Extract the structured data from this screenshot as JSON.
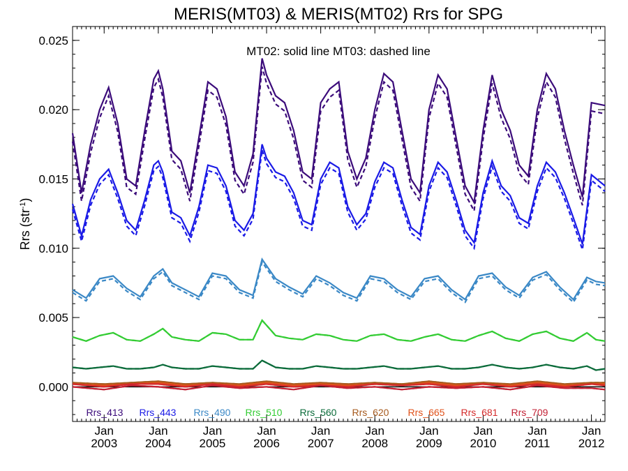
{
  "chart_data": {
    "type": "line",
    "title": "MERIS(MT03) & MERIS(MT02)  Rrs for SPG",
    "annotation": "MT02: solid line   MT03: dashed line",
    "ylabel_main": "Rrs (str",
    "ylabel_sup": "-1",
    "ylabel_close": ")",
    "xlim": [
      "2002-06",
      "2012-04"
    ],
    "ylim": [
      -0.0025,
      0.026
    ],
    "yticks": [
      {
        "value": 0.0,
        "label": "0.000"
      },
      {
        "value": 0.005,
        "label": "0.005"
      },
      {
        "value": 0.01,
        "label": "0.010"
      },
      {
        "value": 0.015,
        "label": "0.015"
      },
      {
        "value": 0.02,
        "label": "0.020"
      },
      {
        "value": 0.025,
        "label": "0.025"
      }
    ],
    "xticks": [
      {
        "value": "2003-01",
        "label1": "Jan",
        "label2": "2003"
      },
      {
        "value": "2004-01",
        "label1": "Jan",
        "label2": "2004"
      },
      {
        "value": "2005-01",
        "label1": "Jan",
        "label2": "2005"
      },
      {
        "value": "2006-01",
        "label1": "Jan",
        "label2": "2006"
      },
      {
        "value": "2007-01",
        "label1": "Jan",
        "label2": "2007"
      },
      {
        "value": "2008-01",
        "label1": "Jan",
        "label2": "2008"
      },
      {
        "value": "2009-01",
        "label1": "Jan",
        "label2": "2009"
      },
      {
        "value": "2010-01",
        "label1": "Jan",
        "label2": "2010"
      },
      {
        "value": "2011-01",
        "label1": "Jan",
        "label2": "2011"
      },
      {
        "value": "2012-01",
        "label1": "Jan",
        "label2": "2012"
      }
    ],
    "legend_placement": "bottom inside plot",
    "series": [
      {
        "name": "Rrs_413",
        "color": "#3b0b7a",
        "mt03_offset": -0.0006,
        "x": [
          "2002-06",
          "2002-08",
          "2002-10",
          "2002-12",
          "2003-02",
          "2003-04",
          "2003-06",
          "2003-08",
          "2003-10",
          "2003-12",
          "2004-01",
          "2004-02",
          "2004-04",
          "2004-06",
          "2004-08",
          "2004-10",
          "2004-12",
          "2005-02",
          "2005-04",
          "2005-06",
          "2005-08",
          "2005-10",
          "2005-12",
          "2006-01",
          "2006-03",
          "2006-05",
          "2006-07",
          "2006-09",
          "2006-11",
          "2007-01",
          "2007-03",
          "2007-05",
          "2007-07",
          "2007-09",
          "2007-11",
          "2008-01",
          "2008-03",
          "2008-05",
          "2008-07",
          "2008-09",
          "2008-11",
          "2009-01",
          "2009-03",
          "2009-05",
          "2009-07",
          "2009-09",
          "2009-11",
          "2010-01",
          "2010-03",
          "2010-05",
          "2010-07",
          "2010-09",
          "2010-11",
          "2011-01",
          "2011-03",
          "2011-05",
          "2011-07",
          "2011-09",
          "2011-11",
          "2012-01",
          "2012-04"
        ],
        "values": [
          0.0183,
          0.014,
          0.0175,
          0.02,
          0.0216,
          0.019,
          0.015,
          0.0145,
          0.0185,
          0.0222,
          0.0228,
          0.0215,
          0.017,
          0.0163,
          0.014,
          0.018,
          0.022,
          0.0215,
          0.0195,
          0.0155,
          0.0145,
          0.0168,
          0.0237,
          0.0225,
          0.021,
          0.0205,
          0.0185,
          0.0155,
          0.015,
          0.0205,
          0.0215,
          0.022,
          0.017,
          0.015,
          0.0165,
          0.02,
          0.0226,
          0.022,
          0.0185,
          0.015,
          0.014,
          0.02,
          0.0225,
          0.0215,
          0.018,
          0.0145,
          0.0133,
          0.0185,
          0.0225,
          0.02,
          0.0185,
          0.016,
          0.0152,
          0.02,
          0.0226,
          0.0215,
          0.0185,
          0.016,
          0.0137,
          0.0205,
          0.0203
        ]
      },
      {
        "name": "Rrs_443",
        "color": "#1a1ae6",
        "mt03_offset": -0.0004,
        "x": [
          "2002-06",
          "2002-08",
          "2002-10",
          "2002-12",
          "2003-02",
          "2003-04",
          "2003-06",
          "2003-08",
          "2003-10",
          "2003-12",
          "2004-01",
          "2004-02",
          "2004-04",
          "2004-06",
          "2004-08",
          "2004-10",
          "2004-12",
          "2005-02",
          "2005-04",
          "2005-06",
          "2005-08",
          "2005-10",
          "2005-12",
          "2006-01",
          "2006-03",
          "2006-05",
          "2006-07",
          "2006-09",
          "2006-11",
          "2007-01",
          "2007-03",
          "2007-05",
          "2007-07",
          "2007-09",
          "2007-11",
          "2008-01",
          "2008-03",
          "2008-05",
          "2008-07",
          "2008-09",
          "2008-11",
          "2009-01",
          "2009-03",
          "2009-05",
          "2009-07",
          "2009-09",
          "2009-11",
          "2010-01",
          "2010-03",
          "2010-05",
          "2010-07",
          "2010-09",
          "2010-11",
          "2011-01",
          "2011-03",
          "2011-05",
          "2011-07",
          "2011-09",
          "2011-11",
          "2012-01",
          "2012-04"
        ],
        "values": [
          0.0132,
          0.0109,
          0.0135,
          0.015,
          0.0157,
          0.014,
          0.012,
          0.0113,
          0.0135,
          0.016,
          0.0163,
          0.0155,
          0.0126,
          0.0122,
          0.0109,
          0.013,
          0.016,
          0.0158,
          0.0145,
          0.012,
          0.0113,
          0.0125,
          0.0175,
          0.0165,
          0.0155,
          0.0152,
          0.014,
          0.012,
          0.0117,
          0.015,
          0.0162,
          0.0158,
          0.013,
          0.0117,
          0.0125,
          0.0148,
          0.0162,
          0.0158,
          0.0135,
          0.0115,
          0.011,
          0.0145,
          0.0162,
          0.0155,
          0.0135,
          0.0113,
          0.0104,
          0.014,
          0.0163,
          0.0145,
          0.0138,
          0.0122,
          0.0118,
          0.0145,
          0.0162,
          0.0155,
          0.014,
          0.0122,
          0.0103,
          0.0153,
          0.0145
        ]
      },
      {
        "name": "Rrs_490",
        "color": "#3a88c6",
        "mt03_offset": -0.0002,
        "x": [
          "2002-06",
          "2002-09",
          "2002-12",
          "2003-03",
          "2003-06",
          "2003-09",
          "2003-12",
          "2004-02",
          "2004-04",
          "2004-07",
          "2004-10",
          "2005-01",
          "2005-04",
          "2005-07",
          "2005-10",
          "2005-12",
          "2006-03",
          "2006-06",
          "2006-09",
          "2006-12",
          "2007-03",
          "2007-06",
          "2007-09",
          "2007-12",
          "2008-03",
          "2008-06",
          "2008-09",
          "2008-12",
          "2009-03",
          "2009-06",
          "2009-09",
          "2009-12",
          "2010-03",
          "2010-06",
          "2010-09",
          "2010-12",
          "2011-03",
          "2011-06",
          "2011-09",
          "2011-12",
          "2012-02",
          "2012-04"
        ],
        "values": [
          0.007,
          0.0064,
          0.0078,
          0.008,
          0.0071,
          0.0065,
          0.008,
          0.0085,
          0.0075,
          0.007,
          0.0065,
          0.0082,
          0.008,
          0.007,
          0.0066,
          0.0092,
          0.0078,
          0.0072,
          0.0067,
          0.008,
          0.0075,
          0.0068,
          0.0064,
          0.008,
          0.0078,
          0.007,
          0.0065,
          0.0078,
          0.008,
          0.007,
          0.0063,
          0.008,
          0.0082,
          0.0072,
          0.0066,
          0.0079,
          0.0083,
          0.0072,
          0.0063,
          0.0079,
          0.0076,
          0.0075
        ]
      },
      {
        "name": "Rrs_510",
        "color": "#33cc33",
        "mt03_offset": 0,
        "x": [
          "2002-06",
          "2002-09",
          "2002-12",
          "2003-03",
          "2003-06",
          "2003-09",
          "2003-12",
          "2004-02",
          "2004-04",
          "2004-07",
          "2004-10",
          "2005-01",
          "2005-04",
          "2005-07",
          "2005-10",
          "2005-12",
          "2006-03",
          "2006-06",
          "2006-09",
          "2006-12",
          "2007-03",
          "2007-06",
          "2007-09",
          "2007-12",
          "2008-03",
          "2008-06",
          "2008-09",
          "2008-12",
          "2009-03",
          "2009-06",
          "2009-09",
          "2009-12",
          "2010-03",
          "2010-06",
          "2010-09",
          "2010-12",
          "2011-03",
          "2011-06",
          "2011-09",
          "2011-12",
          "2012-02",
          "2012-04"
        ],
        "values": [
          0.0036,
          0.0033,
          0.0037,
          0.0039,
          0.0034,
          0.0033,
          0.0038,
          0.0042,
          0.0036,
          0.0034,
          0.0033,
          0.0039,
          0.0038,
          0.0034,
          0.0034,
          0.0048,
          0.0037,
          0.0035,
          0.0034,
          0.0038,
          0.0037,
          0.0034,
          0.0033,
          0.0037,
          0.0038,
          0.0034,
          0.0033,
          0.0036,
          0.0038,
          0.0034,
          0.0033,
          0.0037,
          0.004,
          0.0035,
          0.0033,
          0.0038,
          0.004,
          0.0035,
          0.0033,
          0.0039,
          0.0034,
          0.0033
        ]
      },
      {
        "name": "Rrs_560",
        "color": "#0b6b3a",
        "mt03_offset": 0,
        "x": [
          "2002-06",
          "2002-09",
          "2002-12",
          "2003-03",
          "2003-06",
          "2003-09",
          "2003-12",
          "2004-02",
          "2004-04",
          "2004-07",
          "2004-10",
          "2005-01",
          "2005-04",
          "2005-07",
          "2005-10",
          "2005-12",
          "2006-03",
          "2006-06",
          "2006-09",
          "2006-12",
          "2007-03",
          "2007-06",
          "2007-09",
          "2007-12",
          "2008-03",
          "2008-06",
          "2008-09",
          "2008-12",
          "2009-03",
          "2009-06",
          "2009-09",
          "2009-12",
          "2010-03",
          "2010-06",
          "2010-09",
          "2010-12",
          "2011-03",
          "2011-06",
          "2011-09",
          "2011-12",
          "2012-02",
          "2012-04"
        ],
        "values": [
          0.0014,
          0.0013,
          0.0014,
          0.0015,
          0.0013,
          0.0013,
          0.0014,
          0.0016,
          0.0014,
          0.0013,
          0.0013,
          0.0015,
          0.0014,
          0.0013,
          0.0013,
          0.0019,
          0.0014,
          0.0013,
          0.0013,
          0.0015,
          0.0014,
          0.0013,
          0.0013,
          0.0014,
          0.0015,
          0.0013,
          0.0013,
          0.0014,
          0.0015,
          0.0013,
          0.0013,
          0.0014,
          0.0016,
          0.0014,
          0.0013,
          0.0014,
          0.0016,
          0.0014,
          0.0013,
          0.0015,
          0.0012,
          0.0013
        ]
      },
      {
        "name": "Rrs_620",
        "color": "#a65a1e",
        "mt03_offset": 0,
        "x": [
          "2002-06",
          "2003-01",
          "2003-07",
          "2004-01",
          "2004-07",
          "2005-01",
          "2005-07",
          "2006-01",
          "2006-07",
          "2007-01",
          "2007-07",
          "2008-01",
          "2008-07",
          "2009-01",
          "2009-07",
          "2010-01",
          "2010-07",
          "2011-01",
          "2011-07",
          "2012-01",
          "2012-04"
        ],
        "values": [
          0.0003,
          0.0002,
          0.0003,
          0.0004,
          0.0002,
          0.0003,
          0.0002,
          0.0004,
          0.0002,
          0.0003,
          0.0002,
          0.0003,
          0.0002,
          0.0004,
          0.0002,
          0.0003,
          0.0002,
          0.0004,
          0.0002,
          0.0003,
          0.0003
        ]
      },
      {
        "name": "Rrs_665",
        "color": "#e0521a",
        "mt03_offset": 0,
        "x": [
          "2002-06",
          "2003-01",
          "2003-07",
          "2004-01",
          "2004-07",
          "2005-01",
          "2005-07",
          "2006-01",
          "2006-07",
          "2007-01",
          "2007-07",
          "2008-01",
          "2008-07",
          "2009-01",
          "2009-07",
          "2010-01",
          "2010-07",
          "2011-01",
          "2011-07",
          "2012-01",
          "2012-04"
        ],
        "values": [
          0.0002,
          0.0001,
          0.0002,
          0.0003,
          0.0001,
          0.0002,
          0.0001,
          0.0003,
          0.0001,
          0.0002,
          0.0001,
          0.0002,
          0.0001,
          0.0003,
          0.0001,
          0.0002,
          0.0001,
          0.0003,
          0.0001,
          0.0002,
          0.0002
        ]
      },
      {
        "name": "Rrs_681",
        "color": "#d42a2a",
        "mt03_offset": 0,
        "x": [
          "2002-06",
          "2003-01",
          "2003-07",
          "2004-01",
          "2004-07",
          "2005-01",
          "2005-07",
          "2006-01",
          "2006-07",
          "2007-01",
          "2007-07",
          "2008-01",
          "2008-07",
          "2009-01",
          "2009-07",
          "2010-01",
          "2010-07",
          "2011-01",
          "2011-07",
          "2012-01",
          "2012-04"
        ],
        "values": [
          0.0002,
          0.0,
          0.0002,
          0.0002,
          0.0,
          0.0002,
          0.0,
          0.0002,
          0.0,
          0.0001,
          0.0,
          0.0002,
          0.0001,
          0.0002,
          0.0,
          0.0002,
          0.0,
          0.0002,
          0.0,
          0.0002,
          0.0001
        ]
      },
      {
        "name": "Rrs_709",
        "color": "#c21f33",
        "mt03_offset": 0,
        "x": [
          "2002-06",
          "2003-01",
          "2003-07",
          "2004-01",
          "2004-07",
          "2005-01",
          "2005-07",
          "2006-01",
          "2006-07",
          "2007-01",
          "2007-07",
          "2008-01",
          "2008-07",
          "2009-01",
          "2009-07",
          "2010-01",
          "2010-07",
          "2011-01",
          "2011-07",
          "2012-01",
          "2012-04"
        ],
        "values": [
          0.0,
          -0.0002,
          0.0001,
          0.0,
          -0.0002,
          0.0001,
          -0.0001,
          0.0,
          -0.0002,
          0.0001,
          -0.0001,
          0.0,
          -0.0002,
          0.0,
          -0.0001,
          0.0,
          -0.0002,
          0.0001,
          -0.0001,
          -0.0001,
          -0.0002
        ]
      }
    ]
  }
}
